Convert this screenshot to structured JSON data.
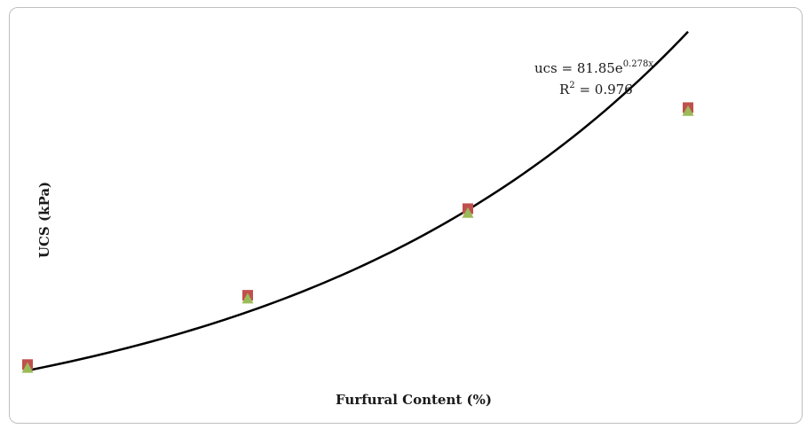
{
  "chart_data": {
    "type": "scatter",
    "title": "",
    "xlabel": "Furfural Content (%)",
    "ylabel": "UCS (kPa)",
    "xlim": [
      0,
      6
    ],
    "ylim": [
      80,
      430
    ],
    "grid": false,
    "legend": "none",
    "x": [
      0,
      2,
      4,
      6
    ],
    "series": [
      {
        "marker": "square",
        "color": "#c0504d",
        "values": [
          88,
          160,
          250,
          355
        ]
      },
      {
        "marker": "triangle",
        "color": "#9bbb59",
        "values": [
          85,
          157,
          246,
          352
        ]
      }
    ],
    "trendline": {
      "type": "exponential",
      "a": 81.85,
      "b": 0.278,
      "color": "#000000",
      "equation_prefix": "ucs = 81.85e",
      "equation_exponent": "0.278x",
      "r2_prefix": "R",
      "r2_exponent": "2",
      "r2_suffix": " = 0.976"
    }
  }
}
